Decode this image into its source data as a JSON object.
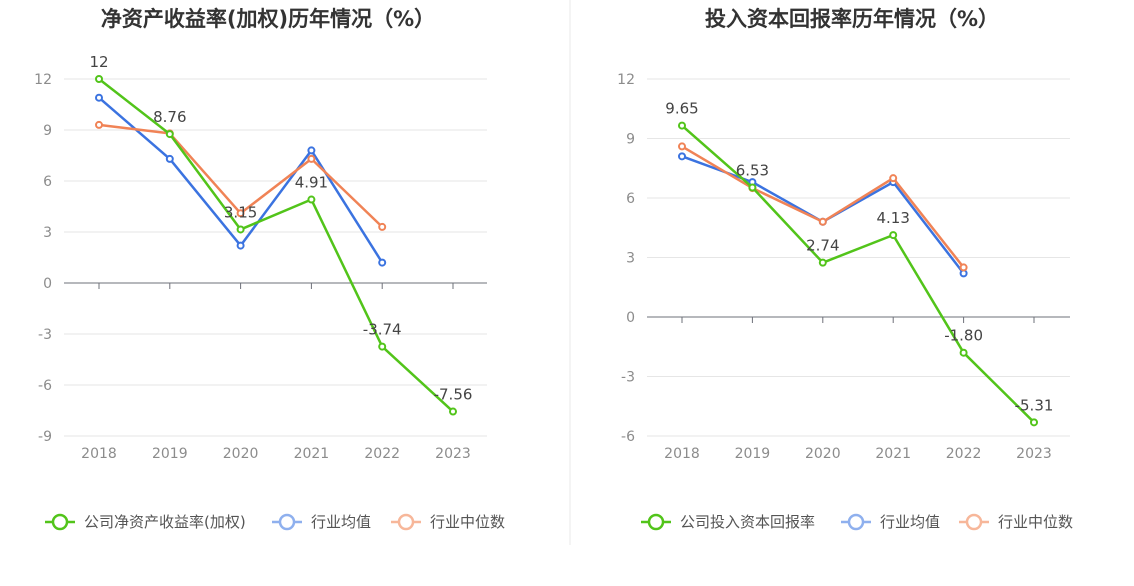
{
  "chart_data": [
    {
      "type": "line",
      "title": "净资产收益率(加权)历年情况（%）",
      "categories": [
        "2018",
        "2019",
        "2020",
        "2021",
        "2022",
        "2023"
      ],
      "ylim": [
        -9,
        12
      ],
      "yticks": [
        12,
        9,
        6,
        3,
        0,
        -3,
        -6,
        -9
      ],
      "ytick_labels": [
        "12",
        "9",
        "6",
        "3",
        "0",
        "-3",
        "-6",
        "-9"
      ],
      "series": [
        {
          "name": "公司净资产收益率(加权)",
          "color": "#52c41a",
          "values": [
            12,
            8.76,
            3.15,
            4.91,
            -3.74,
            -7.56
          ],
          "labels": [
            "12",
            "8.76",
            "3.15",
            "4.91",
            "-3.74",
            "-7.56"
          ]
        },
        {
          "name": "行业均值",
          "color": "#3b73e0",
          "legend_color": "#8fb0ee",
          "values": [
            10.9,
            7.3,
            2.2,
            7.8,
            1.2,
            null
          ]
        },
        {
          "name": "行业中位数",
          "color": "#f08356",
          "legend_color": "#f7b79a",
          "values": [
            9.3,
            8.8,
            4.1,
            7.3,
            3.3,
            null
          ]
        }
      ]
    },
    {
      "type": "line",
      "title": "投入资本回报率历年情况（%）",
      "categories": [
        "2018",
        "2019",
        "2020",
        "2021",
        "2022",
        "2023"
      ],
      "ylim": [
        -6,
        12
      ],
      "yticks": [
        12,
        9,
        6,
        3,
        0,
        -3,
        -6
      ],
      "ytick_labels": [
        "12",
        "9",
        "6",
        "3",
        "0",
        "-3",
        "-6"
      ],
      "series": [
        {
          "name": "公司投入资本回报率",
          "color": "#52c41a",
          "values": [
            9.65,
            6.53,
            2.74,
            4.13,
            -1.8,
            -5.31
          ],
          "labels": [
            "9.65",
            "6.53",
            "2.74",
            "4.13",
            "-1.80",
            "-5.31"
          ]
        },
        {
          "name": "行业均值",
          "color": "#3b73e0",
          "legend_color": "#8fb0ee",
          "values": [
            8.1,
            6.8,
            4.8,
            6.8,
            2.2,
            null
          ]
        },
        {
          "name": "行业中位数",
          "color": "#f08356",
          "legend_color": "#f7b79a",
          "values": [
            8.6,
            6.5,
            4.8,
            7.0,
            2.5,
            null
          ]
        }
      ]
    }
  ]
}
